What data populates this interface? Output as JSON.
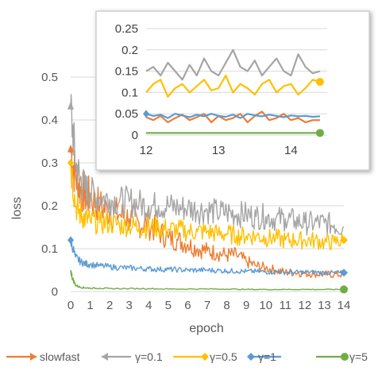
{
  "chart_data": [
    {
      "type": "line",
      "title": "",
      "xlabel": "epoch",
      "ylabel": "loss",
      "xlim": [
        0,
        14
      ],
      "ylim": [
        0,
        0.5
      ],
      "x_ticks": [
        "0",
        "1",
        "2",
        "3",
        "4",
        "5",
        "6",
        "7",
        "8",
        "9",
        "10",
        "11",
        "12",
        "13",
        "14"
      ],
      "y_ticks": [
        "0",
        "0.1",
        "0.2",
        "0.3",
        "0.4",
        "0.5"
      ],
      "grid": true,
      "legend_position": "bottom",
      "series": [
        {
          "name": "slowfast",
          "color": "#ED7D31",
          "marker": "arrow",
          "x": [
            0,
            0.25,
            0.5,
            0.75,
            1,
            1.5,
            2,
            2.5,
            3,
            3.5,
            4,
            4.5,
            5,
            5.5,
            6,
            6.5,
            7,
            7.5,
            8,
            8.5,
            9,
            9.5,
            10,
            10.5,
            11,
            11.5,
            12,
            12.5,
            13,
            13.5,
            14
          ],
          "values": [
            0.33,
            0.27,
            0.24,
            0.225,
            0.22,
            0.2,
            0.185,
            0.18,
            0.17,
            0.16,
            0.155,
            0.14,
            0.125,
            0.12,
            0.11,
            0.1,
            0.095,
            0.09,
            0.085,
            0.085,
            0.07,
            0.06,
            0.055,
            0.05,
            0.045,
            0.045,
            0.042,
            0.042,
            0.04,
            0.04,
            0.04
          ]
        },
        {
          "name": "γ=0.1",
          "color": "#A5A5A5",
          "marker": "arrow",
          "x": [
            0,
            0.25,
            0.5,
            0.75,
            1,
            1.5,
            2,
            2.5,
            3,
            3.5,
            4,
            4.5,
            5,
            5.5,
            6,
            6.5,
            7,
            7.5,
            8,
            8.5,
            9,
            9.5,
            10,
            10.5,
            11,
            11.5,
            12,
            12.5,
            13,
            13.5,
            14
          ],
          "values": [
            0.43,
            0.3,
            0.26,
            0.24,
            0.23,
            0.22,
            0.215,
            0.21,
            0.21,
            0.205,
            0.2,
            0.2,
            0.2,
            0.195,
            0.195,
            0.19,
            0.19,
            0.185,
            0.185,
            0.18,
            0.18,
            0.175,
            0.175,
            0.17,
            0.17,
            0.165,
            0.16,
            0.16,
            0.16,
            0.155,
            0.15
          ]
        },
        {
          "name": "γ=0.5",
          "color": "#FFC000",
          "marker": "diamond",
          "x": [
            0,
            0.25,
            0.5,
            0.75,
            1,
            1.5,
            2,
            2.5,
            3,
            3.5,
            4,
            4.5,
            5,
            5.5,
            6,
            6.5,
            7,
            7.5,
            8,
            8.5,
            9,
            9.5,
            10,
            10.5,
            11,
            11.5,
            12,
            12.5,
            13,
            13.5,
            14
          ],
          "values": [
            0.3,
            0.2,
            0.18,
            0.17,
            0.165,
            0.16,
            0.16,
            0.155,
            0.155,
            0.15,
            0.15,
            0.15,
            0.145,
            0.145,
            0.14,
            0.14,
            0.14,
            0.135,
            0.135,
            0.13,
            0.13,
            0.13,
            0.125,
            0.125,
            0.12,
            0.12,
            0.12,
            0.12,
            0.115,
            0.115,
            0.12
          ]
        },
        {
          "name": "γ=1",
          "color": "#5B9BD5",
          "marker": "diamond",
          "x": [
            0,
            0.25,
            0.5,
            0.75,
            1,
            1.5,
            2,
            2.5,
            3,
            3.5,
            4,
            4.5,
            5,
            5.5,
            6,
            6.5,
            7,
            7.5,
            8,
            8.5,
            9,
            9.5,
            10,
            10.5,
            11,
            11.5,
            12,
            12.5,
            13,
            13.5,
            14
          ],
          "values": [
            0.12,
            0.08,
            0.07,
            0.065,
            0.063,
            0.06,
            0.058,
            0.056,
            0.055,
            0.054,
            0.053,
            0.052,
            0.052,
            0.051,
            0.05,
            0.05,
            0.05,
            0.049,
            0.048,
            0.048,
            0.047,
            0.047,
            0.046,
            0.046,
            0.045,
            0.045,
            0.045,
            0.045,
            0.044,
            0.044,
            0.044
          ]
        },
        {
          "name": "γ=5",
          "color": "#70AD47",
          "marker": "circle",
          "x": [
            0,
            0.1,
            0.25,
            0.5,
            0.75,
            1,
            1.5,
            2,
            3,
            4,
            5,
            6,
            7,
            8,
            9,
            10,
            11,
            12,
            13,
            14
          ],
          "values": [
            0.05,
            0.03,
            0.015,
            0.01,
            0.009,
            0.008,
            0.008,
            0.007,
            0.007,
            0.007,
            0.006,
            0.006,
            0.006,
            0.006,
            0.005,
            0.005,
            0.005,
            0.005,
            0.005,
            0.005
          ]
        }
      ]
    },
    {
      "type": "line",
      "title": "",
      "xlim": [
        12,
        14.5
      ],
      "ylim": [
        0,
        0.25
      ],
      "x_ticks": [
        "12",
        "13",
        "14"
      ],
      "y_ticks": [
        "0",
        "0.05",
        "0.1",
        "0.15",
        "0.2",
        "0.25"
      ],
      "grid": true,
      "series": [
        {
          "name": "slowfast",
          "color": "#ED7D31",
          "x": [
            12,
            12.1,
            12.2,
            12.3,
            12.4,
            12.5,
            12.6,
            12.7,
            12.8,
            12.9,
            13,
            13.1,
            13.2,
            13.3,
            13.4,
            13.5,
            13.6,
            13.7,
            13.8,
            13.9,
            14,
            14.1,
            14.2,
            14.3,
            14.4
          ],
          "values": [
            0.042,
            0.035,
            0.045,
            0.03,
            0.04,
            0.048,
            0.035,
            0.042,
            0.05,
            0.03,
            0.045,
            0.035,
            0.04,
            0.05,
            0.03,
            0.045,
            0.055,
            0.035,
            0.04,
            0.05,
            0.035,
            0.04,
            0.03,
            0.035,
            0.035
          ]
        },
        {
          "name": "γ=0.1",
          "color": "#A5A5A5",
          "x": [
            12,
            12.1,
            12.2,
            12.3,
            12.4,
            12.5,
            12.6,
            12.7,
            12.8,
            12.9,
            13,
            13.1,
            13.2,
            13.3,
            13.4,
            13.5,
            13.6,
            13.7,
            13.8,
            13.9,
            14,
            14.1,
            14.2,
            14.3,
            14.4
          ],
          "values": [
            0.15,
            0.16,
            0.14,
            0.17,
            0.15,
            0.13,
            0.165,
            0.14,
            0.18,
            0.15,
            0.14,
            0.17,
            0.2,
            0.16,
            0.15,
            0.175,
            0.14,
            0.16,
            0.18,
            0.15,
            0.14,
            0.19,
            0.16,
            0.145,
            0.15
          ]
        },
        {
          "name": "γ=0.5",
          "color": "#FFC000",
          "x": [
            12,
            12.1,
            12.2,
            12.3,
            12.4,
            12.5,
            12.6,
            12.7,
            12.8,
            12.9,
            13,
            13.1,
            13.2,
            13.3,
            13.4,
            13.5,
            13.6,
            13.7,
            13.8,
            13.9,
            14,
            14.1,
            14.2,
            14.3,
            14.4
          ],
          "values": [
            0.1,
            0.12,
            0.13,
            0.09,
            0.11,
            0.12,
            0.1,
            0.115,
            0.13,
            0.105,
            0.11,
            0.14,
            0.1,
            0.12,
            0.11,
            0.095,
            0.12,
            0.13,
            0.1,
            0.115,
            0.12,
            0.095,
            0.11,
            0.13,
            0.125
          ]
        },
        {
          "name": "γ=1",
          "color": "#5B9BD5",
          "x": [
            12,
            12.1,
            12.2,
            12.3,
            12.4,
            12.5,
            12.6,
            12.7,
            12.8,
            12.9,
            13,
            13.1,
            13.2,
            13.3,
            13.4,
            13.5,
            13.6,
            13.7,
            13.8,
            13.9,
            14,
            14.1,
            14.2,
            14.3,
            14.4
          ],
          "values": [
            0.05,
            0.045,
            0.048,
            0.04,
            0.05,
            0.046,
            0.042,
            0.048,
            0.044,
            0.05,
            0.045,
            0.043,
            0.048,
            0.04,
            0.05,
            0.046,
            0.044,
            0.048,
            0.045,
            0.042,
            0.046,
            0.044,
            0.045,
            0.043,
            0.044
          ]
        },
        {
          "name": "γ=5",
          "color": "#70AD47",
          "x": [
            12,
            12.5,
            13,
            13.5,
            14,
            14.4
          ],
          "values": [
            0.005,
            0.005,
            0.005,
            0.005,
            0.005,
            0.005
          ]
        }
      ]
    }
  ]
}
